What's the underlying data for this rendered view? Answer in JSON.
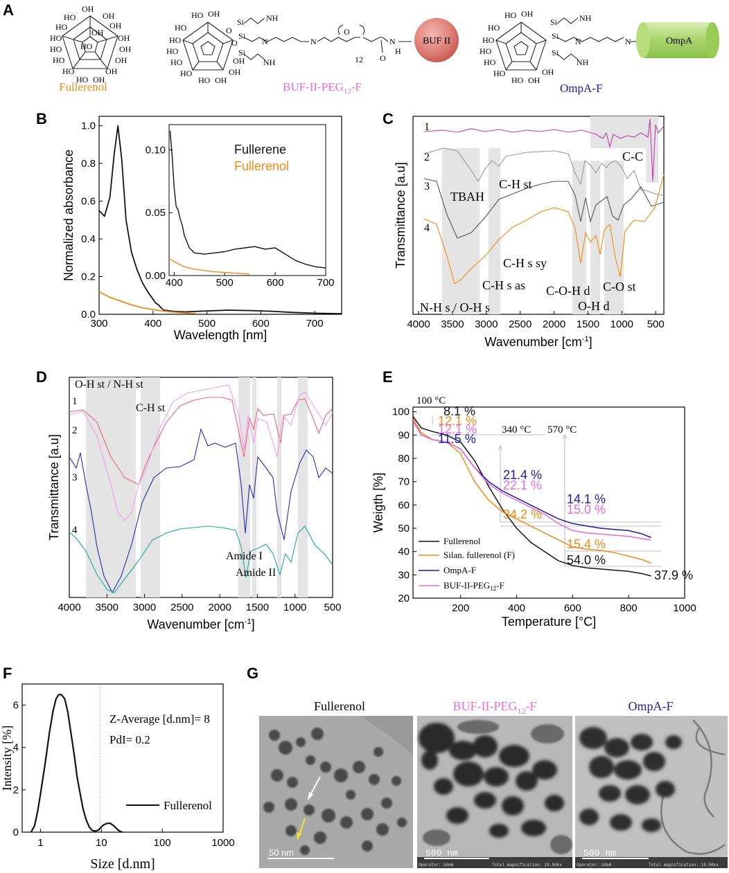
{
  "colors": {
    "black": "#111111",
    "orange": "#f08a14",
    "blue": "#1a1aa8",
    "pink": "#e86ad8",
    "magenta": "#c23aa8",
    "teal": "#1aa89a",
    "salmon": "#e8667a",
    "gray": "#888888",
    "dark_gray": "#555555",
    "purple_text": "#1a1a9a",
    "pink_text": "#e050d0",
    "band": "#e6e6e6"
  },
  "panels": {
    "A": "A",
    "B": "B",
    "C": "C",
    "D": "D",
    "E": "E",
    "F": "F",
    "G": "G"
  },
  "panelA": {
    "labels": [
      "Fullerenol",
      "BUF-II-PEG",
      "OmpA-F"
    ],
    "peg_sub": "12",
    "peg_suffix": "-F",
    "spheres": {
      "buf": "BUF II",
      "ompa": "OmpA"
    },
    "chem": {
      "ho": "HO",
      "oh": "OH",
      "nh2": "NH",
      "si": "Si",
      "o": "O",
      "n": "N",
      "h": "H",
      "n12": "12"
    }
  },
  "chart_data": [
    {
      "id": "B",
      "type": "line",
      "title": "",
      "xlabel": "Wavelength [nm]",
      "ylabel": "Normalized absorbance",
      "xlim": [
        300,
        750
      ],
      "ylim": [
        0,
        1.05
      ],
      "xticks": [
        300,
        400,
        500,
        600,
        700
      ],
      "yticks": [
        0.0,
        0.2,
        0.4,
        0.6,
        0.8,
        1.0
      ],
      "xtick_labels": [
        "300",
        "400",
        "500",
        "600",
        "700"
      ],
      "ytick_labels": [
        "0.0",
        "0.2",
        "0.4",
        "0.6",
        "0.8",
        "1.0"
      ],
      "legend": [
        "Fullerene",
        "Fullerenol"
      ],
      "series": [
        {
          "name": "Fullerene",
          "color": "#111111",
          "x": [
            300,
            310,
            320,
            328,
            335,
            342,
            350,
            360,
            370,
            380,
            390,
            400,
            405,
            410,
            415,
            420,
            440,
            460,
            500,
            540,
            580,
            620,
            660,
            700,
            750
          ],
          "y": [
            0.55,
            0.52,
            0.62,
            0.85,
            1.0,
            0.82,
            0.5,
            0.33,
            0.24,
            0.17,
            0.12,
            0.08,
            0.06,
            0.05,
            0.035,
            0.022,
            0.015,
            0.013,
            0.018,
            0.022,
            0.02,
            0.016,
            0.01,
            0.006,
            0.003
          ]
        },
        {
          "name": "Fullerenol",
          "color": "#f08a14",
          "x": [
            300,
            320,
            340,
            360,
            380,
            400,
            420,
            440,
            460,
            480
          ],
          "y": [
            0.12,
            0.09,
            0.07,
            0.05,
            0.035,
            0.025,
            0.017,
            0.011,
            0.007,
            0.004
          ]
        }
      ],
      "inset": {
        "xlim": [
          390,
          700
        ],
        "ylim": [
          0,
          0.12
        ],
        "xticks": [
          400,
          500,
          600,
          700
        ],
        "yticks": [
          0.0,
          0.05,
          0.1
        ],
        "xtick_labels": [
          "400",
          "500",
          "600",
          "700"
        ],
        "ytick_labels": [
          "0.00",
          "0.05",
          "0.10"
        ],
        "series": [
          {
            "name": "Fullerene",
            "color": "#111111",
            "x": [
              392,
              396,
              400,
              404,
              408,
              412,
              416,
              420,
              430,
              440,
              460,
              480,
              500,
              520,
              540,
              560,
              580,
              600,
              620,
              640,
              660,
              680,
              700
            ],
            "y": [
              0.115,
              0.095,
              0.07,
              0.055,
              0.052,
              0.045,
              0.04,
              0.032,
              0.022,
              0.018,
              0.017,
              0.018,
              0.019,
              0.021,
              0.022,
              0.023,
              0.021,
              0.022,
              0.017,
              0.012,
              0.009,
              0.007,
              0.006
            ]
          },
          {
            "name": "Fullerenol",
            "color": "#f08a14",
            "x": [
              392,
              400,
              410,
              420,
              440,
              460,
              480,
              500,
              520,
              540,
              550
            ],
            "y": [
              0.013,
              0.011,
              0.009,
              0.007,
              0.005,
              0.004,
              0.003,
              0.0025,
              0.002,
              0.0015,
              0.001
            ]
          }
        ]
      }
    },
    {
      "id": "C",
      "type": "line",
      "xlabel": "Wavenumber [cm",
      "xlabel_sup": "-1",
      "xlabel_end": "]",
      "ylabel": "Transmittance [a.u]",
      "xlim": [
        4000,
        400
      ],
      "xticks": [
        4000,
        3500,
        3000,
        2500,
        2000,
        1500,
        1000,
        500
      ],
      "xtick_labels": [
        "4000",
        "3500",
        "3000",
        "2500",
        "2000",
        "1500",
        "1000",
        "500"
      ],
      "series_labels": [
        "1",
        "2",
        "3",
        "4"
      ],
      "annotations": [
        "TBAH",
        "C-H st",
        "C-H s sy",
        "C-H s as",
        "N-H s / O-H s",
        "C-O-H d",
        "O-H d",
        "C-O st",
        "C-C"
      ]
    },
    {
      "id": "D",
      "type": "line",
      "xlabel": "Wavenumber [cm",
      "xlabel_sup": "-1",
      "xlabel_end": "]",
      "ylabel": "Transmittance [a.u]",
      "xlim": [
        4000,
        500
      ],
      "xticks": [
        4000,
        3500,
        3000,
        2500,
        2000,
        1500,
        1000,
        500
      ],
      "xtick_labels": [
        "4000",
        "3500",
        "3000",
        "2500",
        "2000",
        "1500",
        "1000",
        "500"
      ],
      "series_labels": [
        "1",
        "2",
        "3",
        "4"
      ],
      "annotations": [
        "O-H st / N-H st",
        "C-H st",
        "Amide I",
        "Amide II"
      ]
    },
    {
      "id": "E",
      "type": "line",
      "xlabel": "Temperature [°C]",
      "ylabel": "Weigth [%]",
      "xlim": [
        30,
        1000
      ],
      "ylim": [
        20,
        102
      ],
      "xticks": [
        200,
        400,
        600,
        800,
        1000
      ],
      "yticks": [
        20,
        30,
        40,
        50,
        60,
        70,
        80,
        90,
        100
      ],
      "xtick_labels": [
        "200",
        "400",
        "600",
        "800",
        "1000"
      ],
      "ytick_labels": [
        "20",
        "30",
        "40",
        "50",
        "60",
        "70",
        "80",
        "90",
        "100"
      ],
      "series": [
        {
          "name": "Fullerenol",
          "color": "#111111",
          "x": [
            30,
            60,
            100,
            150,
            200,
            250,
            300,
            350,
            400,
            450,
            500,
            550,
            600,
            650,
            700,
            750,
            800,
            850,
            880
          ],
          "y": [
            98,
            93,
            91.5,
            90,
            87,
            79,
            68,
            58,
            50,
            44,
            40,
            36,
            34,
            33,
            32.5,
            32,
            31.5,
            30.5,
            29.5
          ]
        },
        {
          "name": "Silan. fullerenol (F)",
          "color": "#f08a14",
          "x": [
            30,
            60,
            100,
            150,
            200,
            250,
            300,
            350,
            400,
            450,
            500,
            550,
            600,
            650,
            700,
            750,
            800,
            850,
            880
          ],
          "y": [
            97,
            91,
            88,
            87,
            82,
            70,
            62,
            57,
            54,
            51,
            48,
            45,
            42,
            41,
            40.5,
            39.5,
            38,
            36.5,
            35
          ]
        },
        {
          "name": "OmpA-F",
          "color": "#1a1aa8",
          "x": [
            30,
            60,
            100,
            150,
            200,
            250,
            300,
            350,
            400,
            450,
            500,
            550,
            600,
            650,
            700,
            750,
            800,
            850,
            880
          ],
          "y": [
            96,
            90,
            88,
            87,
            84,
            76,
            70,
            66,
            63,
            60,
            57,
            54,
            52,
            51,
            50,
            49.5,
            49,
            47.5,
            46
          ]
        },
        {
          "name": "BUF-II-PEG12-F",
          "color": "#e86ad8",
          "x": [
            30,
            60,
            100,
            150,
            200,
            250,
            300,
            350,
            400,
            450,
            500,
            550,
            600,
            650,
            700,
            750,
            800,
            850,
            880
          ],
          "y": [
            96,
            90,
            88,
            87,
            84,
            76,
            69,
            65,
            62,
            59,
            56,
            52,
            49,
            48,
            47.5,
            47,
            46.5,
            45.5,
            45
          ]
        }
      ],
      "legend": [
        "Fullerenol",
        "Silan. fullerenol (F)",
        "OmpA-F",
        "BUF-II-PEG"
      ],
      "legend_sub": "12",
      "legend_suffix": "-F",
      "annotations": {
        "t100": "100 °C",
        "t340": "340 °C",
        "t570": "570 °C",
        "black1": "8.1 %",
        "orange1": "12.1 %",
        "pink1": "12.1 %",
        "blue1": "11.5 %",
        "blue2": "21.4 %",
        "pink2": "22.1 %",
        "orange2": "34.2 %",
        "blue3": "14.1 %",
        "pink3": "15.0 %",
        "orange3": "15.4 %",
        "black2": "54.0 %",
        "black3": "37.9 %"
      }
    },
    {
      "id": "F",
      "type": "line",
      "xlabel": "Size [d.nm]",
      "ylabel": "Intensity [%]",
      "xscale": "log",
      "xlim": [
        0.5,
        1000
      ],
      "ylim": [
        0,
        7
      ],
      "xticks": [
        1,
        10,
        100,
        1000
      ],
      "yticks": [
        0,
        2,
        4,
        6
      ],
      "xtick_labels": [
        "1",
        "10",
        "100",
        "1000"
      ],
      "ytick_labels": [
        "0",
        "2",
        "4",
        "6"
      ],
      "series": [
        {
          "name": "Fullerenol",
          "color": "#111111",
          "x": [
            0.7,
            0.8,
            0.9,
            1.0,
            1.2,
            1.4,
            1.6,
            1.8,
            2.0,
            2.2,
            2.5,
            2.8,
            3.2,
            3.6,
            4.0,
            4.5,
            5.0,
            5.6,
            6.3,
            7.1,
            8.0,
            9.0,
            10,
            11,
            12.5,
            14,
            16,
            18,
            20,
            22
          ],
          "y": [
            0,
            0.3,
            1.0,
            1.8,
            3.3,
            4.7,
            5.7,
            6.3,
            6.5,
            6.5,
            6.3,
            5.7,
            4.6,
            3.6,
            2.6,
            1.8,
            1.1,
            0.6,
            0.25,
            0.08,
            0.05,
            0.1,
            0.25,
            0.35,
            0.42,
            0.42,
            0.3,
            0.15,
            0.05,
            0
          ]
        }
      ],
      "legend": [
        "Fullerenol"
      ],
      "annotations": [
        "Z-Average [d.nm]= 8",
        "PdI= 0.2"
      ]
    }
  ],
  "panelG": {
    "titles": [
      "Fullerenol",
      "BUF-II-PEG",
      "OmpA-F"
    ],
    "peg_sub": "12",
    "peg_suffix": "-F",
    "scales": [
      "50 nm",
      "500 nm",
      "500 nm"
    ],
    "footers": [
      "Operator: UdeA",
      "Total magnification: 19.50kx"
    ]
  }
}
